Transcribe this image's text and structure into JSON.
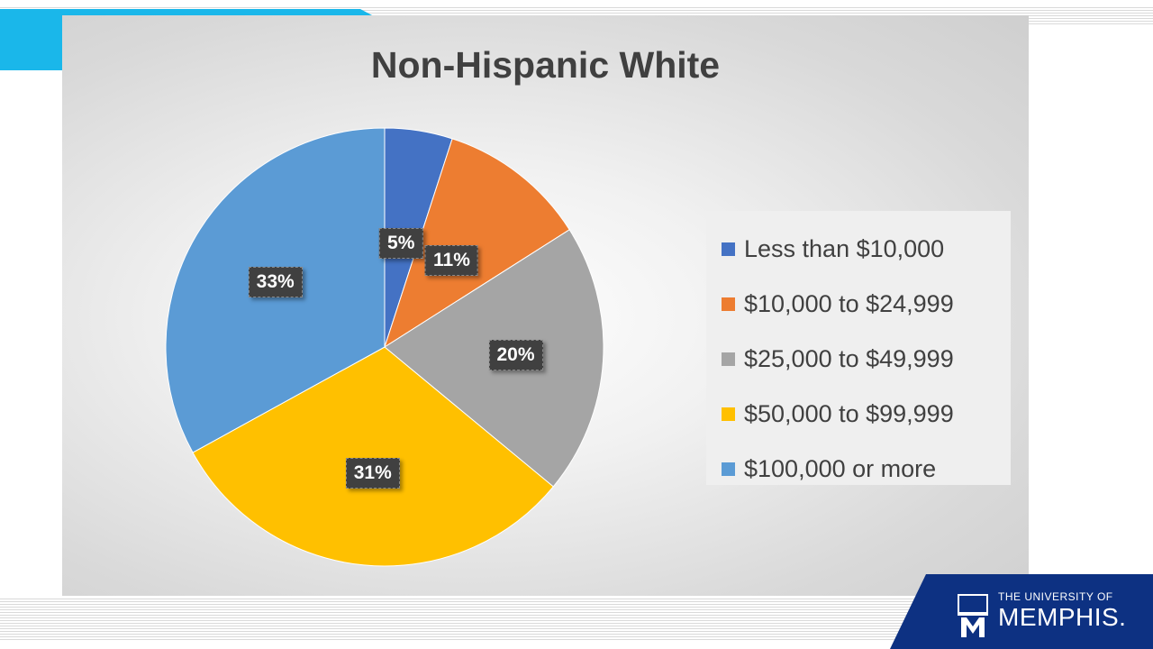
{
  "logo": {
    "line1": "THE UNIVERSITY OF",
    "line2": "MEMPHIS."
  },
  "colors": {
    "accent": "#1ab7ea",
    "logo_bg": "#0d3182"
  },
  "chart_data": {
    "type": "pie",
    "title": "Non-Hispanic White",
    "categories": [
      "Less than $10,000",
      "$10,000 to $24,999",
      "$25,000 to $49,999",
      "$50,000 to $99,999",
      "$100,000 or more"
    ],
    "values": [
      5,
      11,
      20,
      31,
      33
    ],
    "value_labels": [
      "5%",
      "11%",
      "20%",
      "31%",
      "33%"
    ],
    "colors": [
      "#4472c4",
      "#ed7d31",
      "#a5a5a5",
      "#ffc000",
      "#5b9bd5"
    ],
    "legend_position": "right"
  }
}
